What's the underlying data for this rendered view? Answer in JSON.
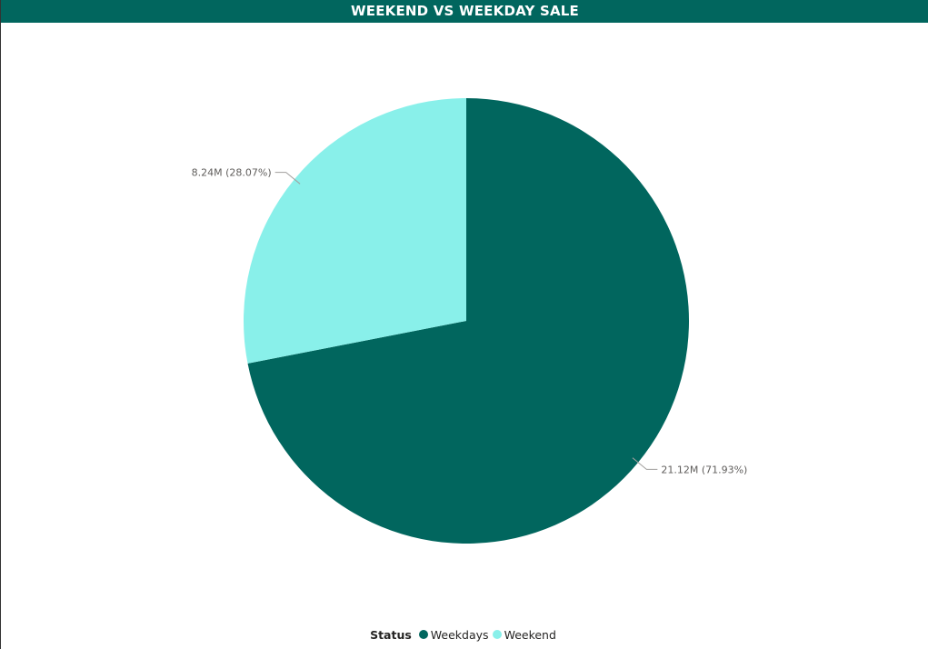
{
  "title": "WEEKEND VS WEEKDAY SALE",
  "legend": {
    "title": "Status",
    "items": [
      {
        "label": "Weekdays",
        "color": "#01665e"
      },
      {
        "label": "Weekend",
        "color": "#89f0ea"
      }
    ]
  },
  "chart_data": {
    "type": "pie",
    "title": "WEEKEND VS WEEKDAY SALE",
    "legend_title": "Status",
    "legend_position": "bottom-center",
    "slices": [
      {
        "name": "Weekdays",
        "value": 21.12,
        "percent": 71.93,
        "label": "21.12M (71.93%)",
        "color": "#01665e"
      },
      {
        "name": "Weekend",
        "value": 8.24,
        "percent": 28.07,
        "label": "8.24M (28.07%)",
        "color": "#89f0ea"
      }
    ]
  }
}
